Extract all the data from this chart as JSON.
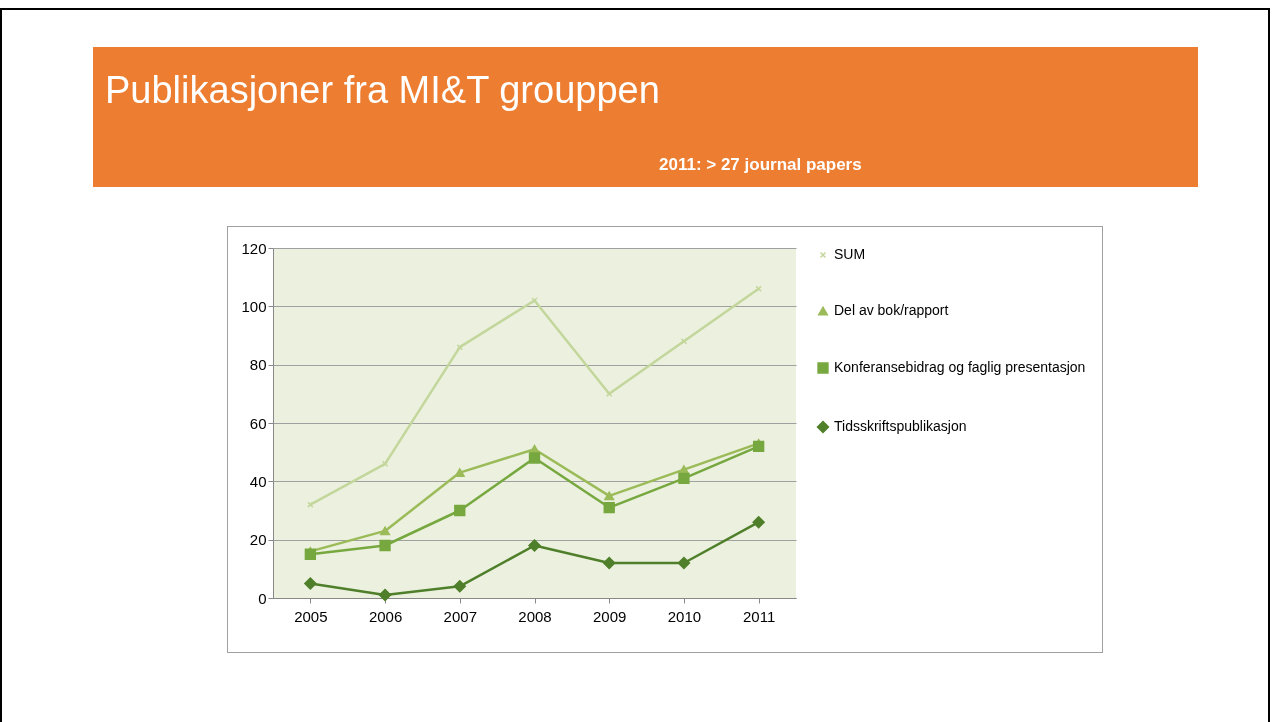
{
  "chart_data": {
    "type": "line",
    "title": "Publikasjoner fra MI&T grouppen",
    "subtitle": "2011: > 27 journal papers",
    "categories": [
      "2005",
      "2006",
      "2007",
      "2008",
      "2009",
      "2010",
      "2011"
    ],
    "series": [
      {
        "name": "SUM",
        "color": "#c3d69b",
        "marker": "cross",
        "values": [
          32,
          46,
          86,
          102,
          70,
          88,
          106
        ]
      },
      {
        "name": "Del av bok/rapport",
        "color": "#9bbb59",
        "marker": "triangle",
        "values": [
          16,
          23,
          43,
          51,
          35,
          44,
          53
        ]
      },
      {
        "name": "Konferansebidrag og faglig presentasjon",
        "color": "#77a83f",
        "marker": "square",
        "values": [
          15,
          18,
          30,
          48,
          31,
          41,
          52
        ]
      },
      {
        "name": "Tidsskriftspublikasjon",
        "color": "#4f7f2a",
        "marker": "diamond",
        "values": [
          5,
          1,
          4,
          18,
          12,
          12,
          26
        ]
      }
    ],
    "ylim": [
      0,
      120
    ],
    "yticks": [
      0,
      20,
      40,
      60,
      80,
      100,
      120
    ],
    "grid": "y",
    "legend": "right"
  }
}
